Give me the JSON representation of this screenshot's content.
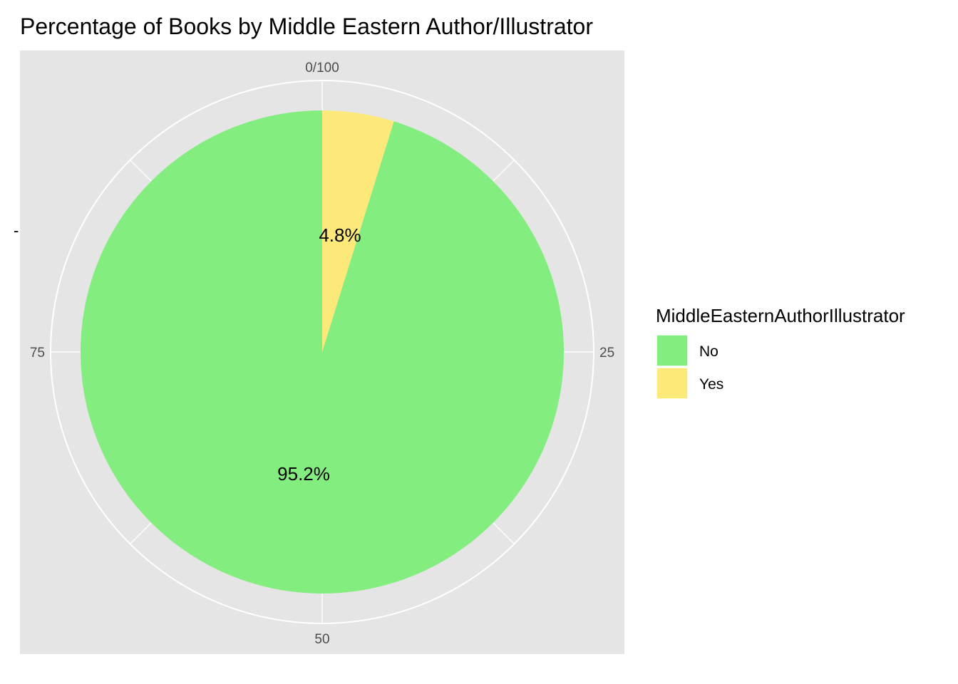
{
  "chart_data": {
    "type": "pie",
    "title": "Percentage of Books by Middle Eastern Author/Illustrator",
    "xlabel": "",
    "ylabel": "",
    "y_axis_category_label": "-",
    "theta_ticks": [
      "0/100",
      "25",
      "50",
      "75"
    ],
    "theta_tick_values": [
      0,
      25,
      50,
      75
    ],
    "legend": {
      "title": "MiddleEasternAuthorIllustrator",
      "placement": "right"
    },
    "series": [
      {
        "name": "No",
        "value": 95.2,
        "label": "95.2%",
        "color": "#84ed80"
      },
      {
        "name": "Yes",
        "value": 4.8,
        "label": "4.8%",
        "color": "#fde97a"
      }
    ],
    "panel_background": "#e5e5e5",
    "grid_color": "#ffffff",
    "grid": true
  }
}
